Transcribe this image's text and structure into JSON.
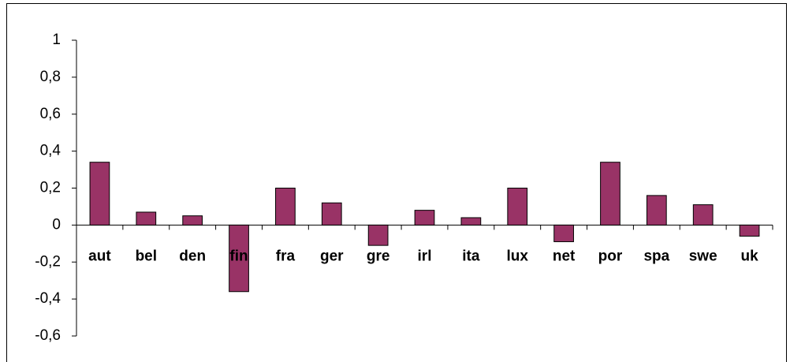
{
  "chart_data": {
    "type": "bar",
    "categories": [
      "aut",
      "bel",
      "den",
      "fin",
      "fra",
      "ger",
      "gre",
      "irl",
      "ita",
      "lux",
      "net",
      "por",
      "spa",
      "swe",
      "uk"
    ],
    "values": [
      0.34,
      0.07,
      0.05,
      -0.36,
      0.2,
      0.12,
      -0.11,
      0.08,
      0.04,
      0.2,
      -0.09,
      0.34,
      0.16,
      0.11,
      -0.06
    ],
    "color": "#993366",
    "ylim": [
      -0.6,
      1
    ],
    "yticks": [
      {
        "value": -0.6,
        "label": "-0,6"
      },
      {
        "value": -0.4,
        "label": "-0,4"
      },
      {
        "value": -0.2,
        "label": "-0,2"
      },
      0,
      {
        "value": 0.2,
        "label": "0,2"
      },
      {
        "value": 0.4,
        "label": "0,4"
      },
      {
        "value": 0.6,
        "label": "0,6"
      },
      {
        "value": 0.8,
        "label": "0,8"
      },
      1
    ],
    "grid": false
  }
}
